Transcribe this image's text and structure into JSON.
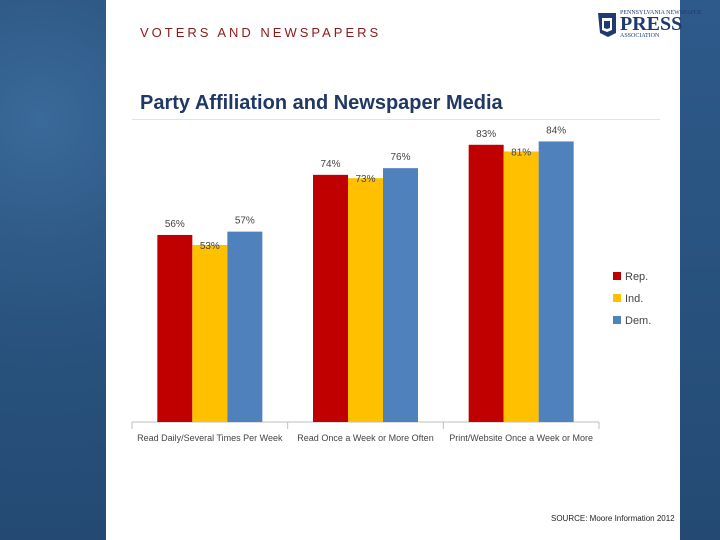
{
  "header": {
    "section_title": "VOTERS AND NEWSPAPERS",
    "logo": {
      "line1": "PENNSYLVANIA NEWSPAPER",
      "line2": "PRESS",
      "line3": "ASSOCIATION",
      "icon": "keystone-map-icon"
    }
  },
  "footer": {
    "source": "SOURCE: Moore Information 2012"
  },
  "colors": {
    "rep": "#c00000",
    "ind": "#ffc000",
    "dem": "#4f81bd",
    "title": "#1f3864",
    "section": "#8b1a1a"
  },
  "chart_data": {
    "type": "bar",
    "title": "Party Affiliation and Newspaper Media",
    "categories": [
      "Read Daily/Several Times Per Week",
      "Read Once a Week or More Often",
      "Print/Website Once a Week or More"
    ],
    "series": [
      {
        "name": "Rep.",
        "values": [
          56,
          74,
          83
        ],
        "labels": [
          "56%",
          "74%",
          "83%"
        ]
      },
      {
        "name": "Ind.",
        "values": [
          53,
          73,
          81
        ],
        "labels": [
          "53%",
          "73%",
          "81%"
        ]
      },
      {
        "name": "Dem.",
        "values": [
          57,
          76,
          84
        ],
        "labels": [
          "57%",
          "76%",
          "84%"
        ]
      }
    ],
    "ylim": [
      0,
      100
    ],
    "grid": false,
    "legend": "right"
  }
}
